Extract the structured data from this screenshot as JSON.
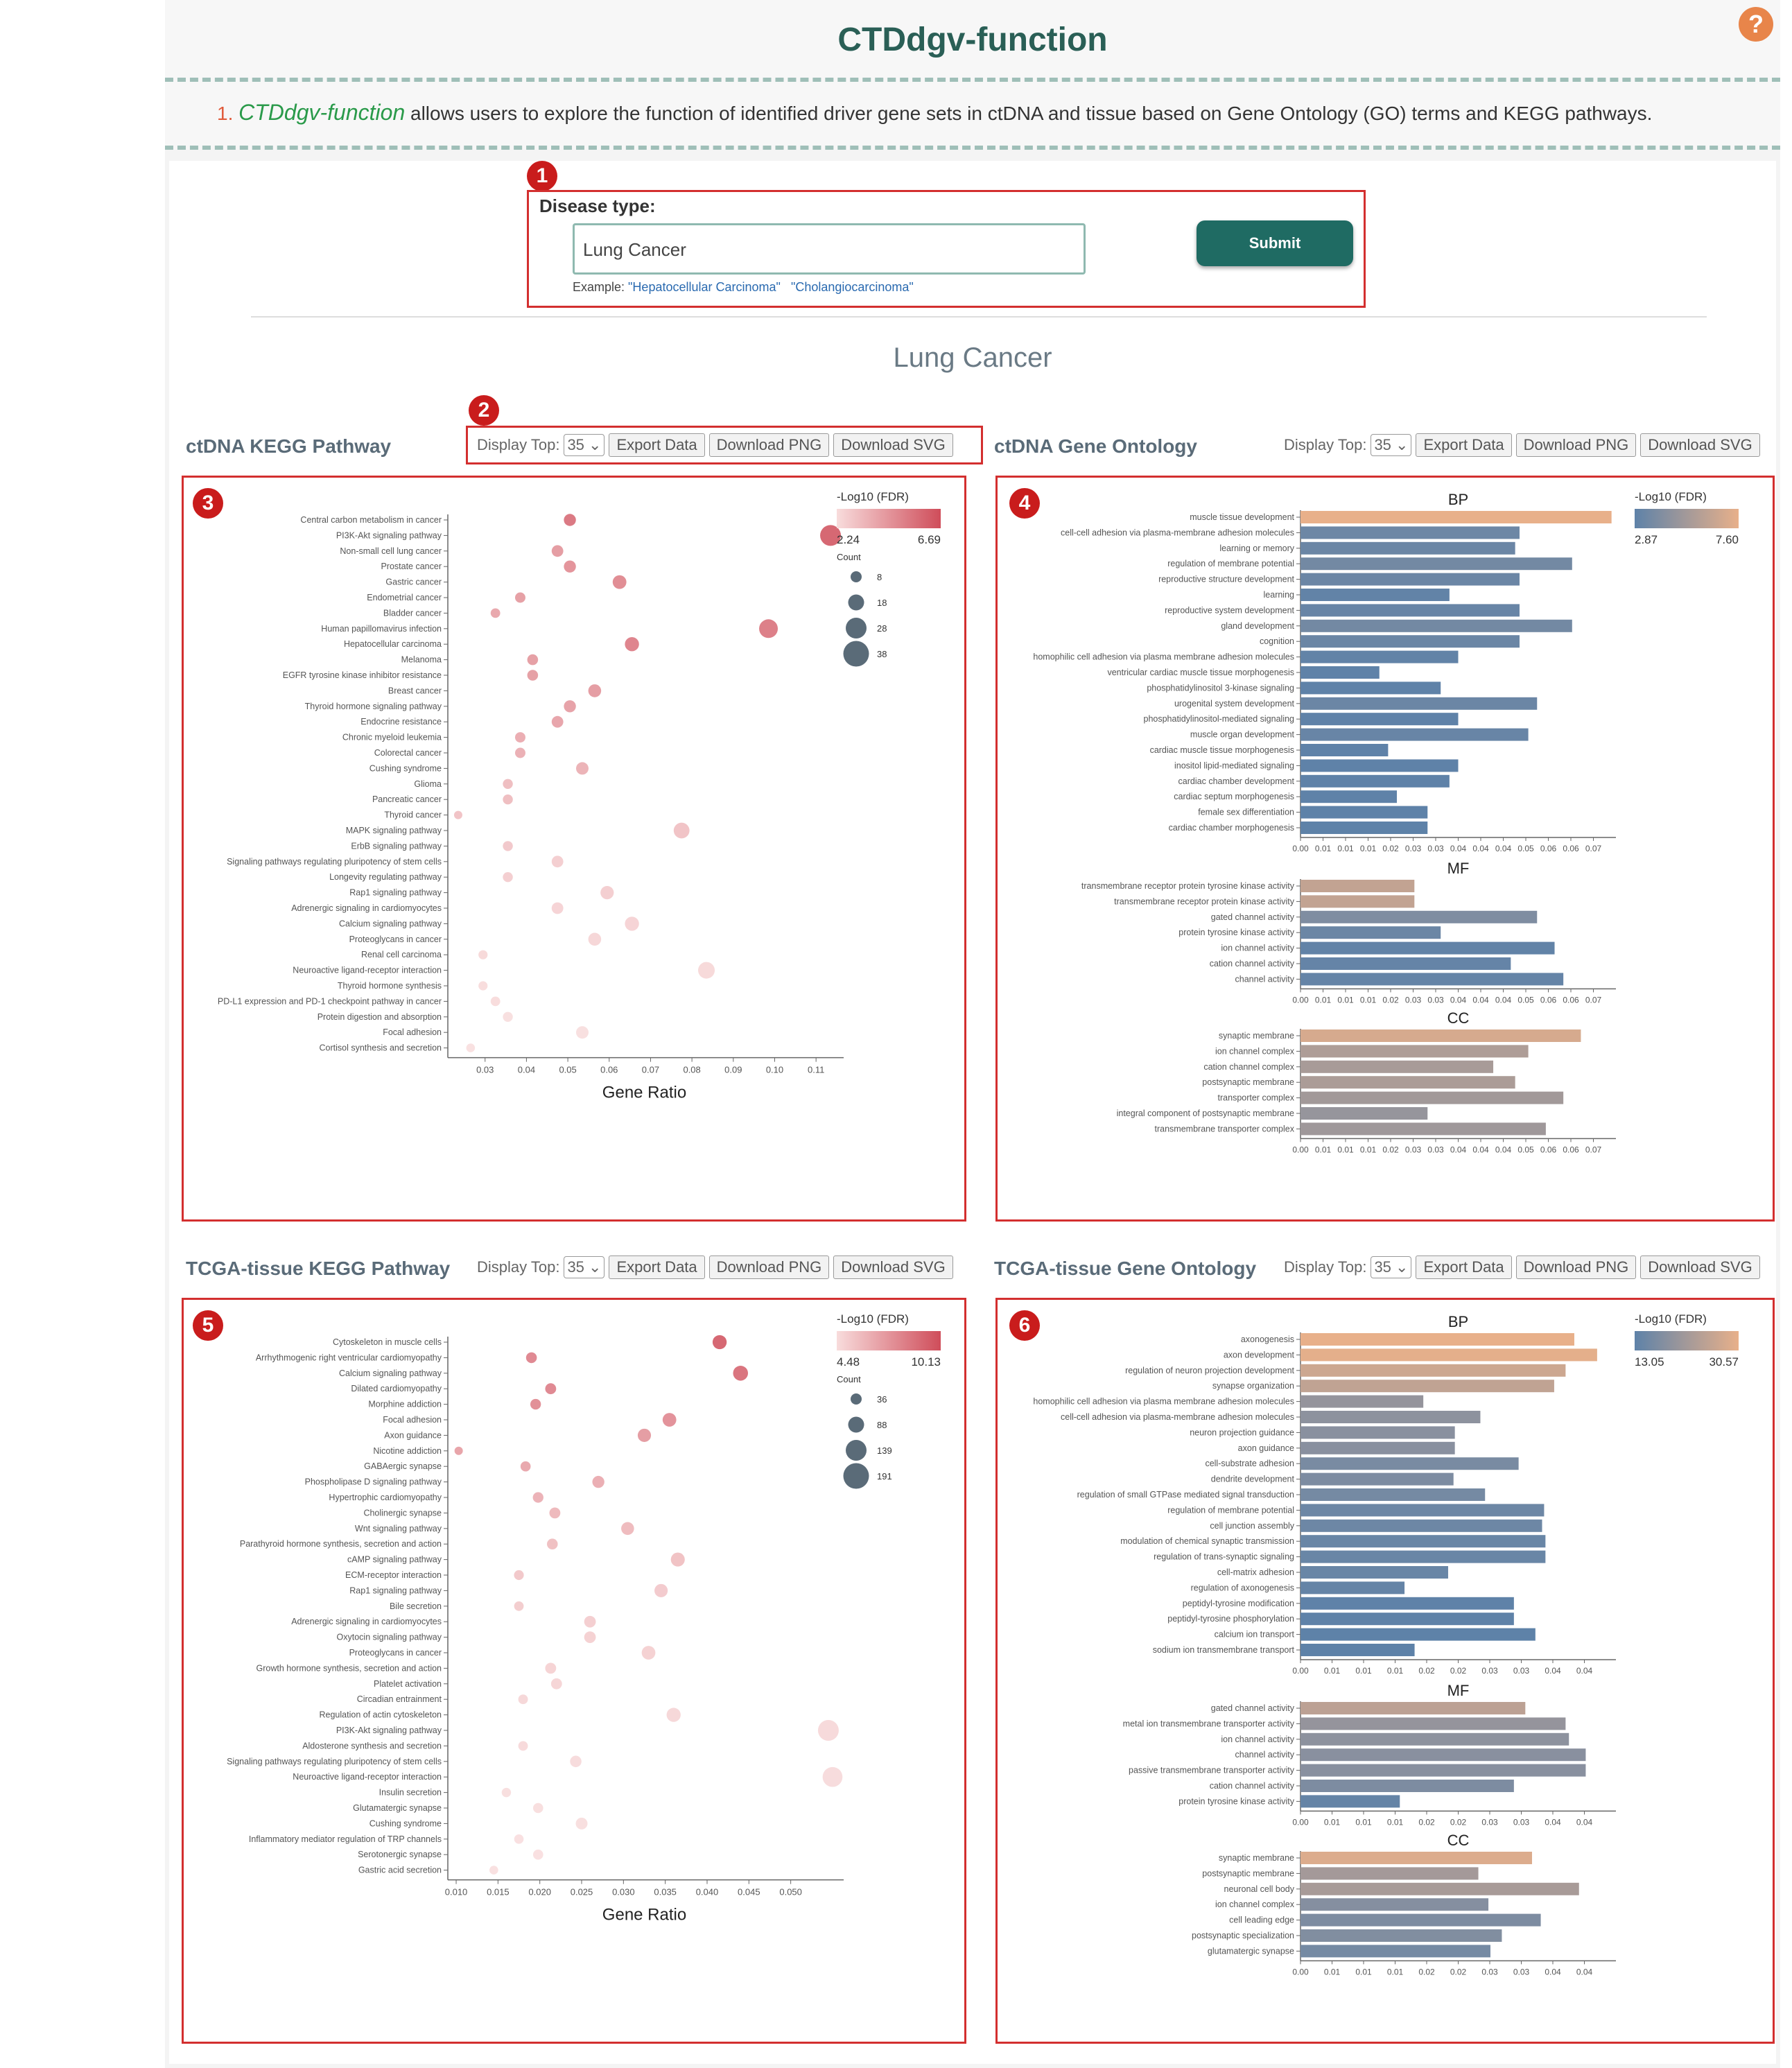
{
  "header": {
    "title": "CTDdgv-function",
    "help_icon": "?"
  },
  "description": {
    "number": "1.",
    "app_name": "CTDdgv-function",
    "text": " allows users to explore the function of identified driver gene sets in ctDNA and tissue based on Gene Ontology (GO) terms and KEGG pathways."
  },
  "badges": [
    "1",
    "2",
    "3",
    "4",
    "5",
    "6"
  ],
  "form": {
    "label": "Disease type:",
    "value": "Lung Cancer",
    "example_prefix": "Example: ",
    "examples": [
      "\"Hepatocellular Carcinoma\"",
      "\"Cholangiocarcinoma\""
    ],
    "submit": "Submit"
  },
  "disease_heading": "Lung Cancer",
  "controls": {
    "display_top": "Display Top:",
    "top_value": "35",
    "export": "Export Data",
    "png": "Download PNG",
    "svg": "Download SVG"
  },
  "panels": {
    "ctdna_kegg": "ctDNA KEGG Pathway",
    "ctdna_go": "ctDNA Gene Ontology",
    "tissue_kegg": "TCGA-tissue KEGG Pathway",
    "tissue_go": "TCGA-tissue Gene Ontology"
  },
  "chart_data": [
    {
      "type": "scatter",
      "panel": "ctDNA KEGG Pathway",
      "xlabel": "Gene Ratio",
      "xlim": [
        0.022,
        0.115
      ],
      "xticks": [
        0.03,
        0.04,
        0.05,
        0.06,
        0.07,
        0.08,
        0.09,
        0.1,
        0.11
      ],
      "xtick_labels": [
        "0.03",
        "0.04",
        "0.05",
        "0.06",
        "0.07",
        "0.08",
        "0.09",
        "0.10",
        "0.11"
      ],
      "legend": {
        "title": "-Log10 (FDR)",
        "min": "2.24",
        "max": "6.69",
        "count_title": "Count",
        "counts": [
          "8",
          "18",
          "28",
          "38"
        ],
        "color_min": "#f8dcdc",
        "color_max": "#cf4d5a"
      },
      "categories": [
        "Central carbon metabolism in cancer",
        "PI3K-Akt signaling pathway",
        "Non-small cell lung cancer",
        "Prostate cancer",
        "Gastric cancer",
        "Endometrial cancer",
        "Bladder cancer",
        "Human papillomavirus infection",
        "Hepatocellular carcinoma",
        "Melanoma",
        "EGFR tyrosine kinase inhibitor resistance",
        "Breast cancer",
        "Thyroid hormone signaling pathway",
        "Endocrine resistance",
        "Chronic myeloid leukemia",
        "Colorectal cancer",
        "Cushing syndrome",
        "Glioma",
        "Pancreatic cancer",
        "Thyroid cancer",
        "MAPK signaling pathway",
        "ErbB signaling pathway",
        "Signaling pathways regulating pluripotency of stem cells",
        "Longevity regulating pathway",
        "Rap1 signaling pathway",
        "Adrenergic signaling in cardiomyocytes",
        "Calcium signaling pathway",
        "Proteoglycans in cancer",
        "Renal cell carcinoma",
        "Neuroactive ligand-receptor interaction",
        "Thyroid hormone synthesis",
        "PD-L1 expression and PD-1 checkpoint pathway in cancer",
        "Protein digestion and absorption",
        "Focal adhesion",
        "Cortisol synthesis and secretion"
      ],
      "x": [
        0.0505,
        0.1135,
        0.0475,
        0.0505,
        0.0625,
        0.0385,
        0.0325,
        0.0985,
        0.0655,
        0.0415,
        0.0415,
        0.0565,
        0.0505,
        0.0475,
        0.0385,
        0.0385,
        0.0535,
        0.0355,
        0.0355,
        0.0235,
        0.0775,
        0.0355,
        0.0475,
        0.0355,
        0.0595,
        0.0475,
        0.0655,
        0.0565,
        0.0295,
        0.0835,
        0.0295,
        0.0325,
        0.0355,
        0.0535,
        0.0265
      ],
      "fdr": [
        6.0,
        6.69,
        4.7,
        5.0,
        5.3,
        4.6,
        4.3,
        5.8,
        5.6,
        4.6,
        4.6,
        4.7,
        4.5,
        4.4,
        4.1,
        4.0,
        3.9,
        3.5,
        3.5,
        3.3,
        3.3,
        3.1,
        2.9,
        2.9,
        2.9,
        2.7,
        2.7,
        2.6,
        2.5,
        2.5,
        2.4,
        2.4,
        2.3,
        2.3,
        2.24
      ],
      "count": [
        17,
        38,
        16,
        17,
        21,
        13,
        11,
        33,
        22,
        14,
        14,
        19,
        17,
        16,
        13,
        13,
        18,
        12,
        12,
        8,
        26,
        12,
        16,
        12,
        20,
        16,
        22,
        19,
        10,
        28,
        10,
        11,
        12,
        18,
        9
      ]
    },
    {
      "type": "bar",
      "panel": "ctDNA Gene Ontology",
      "legend": {
        "title": "-Log10 (FDR)",
        "min": "2.87",
        "max": "7.60",
        "color_min": "#5e82a8",
        "color_max": "#e8b08a"
      },
      "xticks": [
        "0.00",
        "0.01",
        "0.01",
        "0.01",
        "0.02",
        "0.03",
        "0.03",
        "0.04",
        "0.04",
        "0.04",
        "0.05",
        "0.06",
        "0.06",
        "0.07"
      ],
      "xmax": 0.072,
      "groups": [
        {
          "name": "BP",
          "categories": [
            "muscle tissue development",
            "cell-cell adhesion via plasma-membrane adhesion molecules",
            "learning or memory",
            "regulation of membrane potential",
            "reproductive structure development",
            "learning",
            "reproductive system development",
            "gland development",
            "cognition",
            "homophilic cell adhesion via plasma membrane adhesion molecules",
            "ventricular cardiac muscle tissue morphogenesis",
            "phosphatidylinositol 3-kinase signaling",
            "urogenital system development",
            "phosphatidylinositol-mediated signaling",
            "muscle organ development",
            "cardiac muscle tissue morphogenesis",
            "inositol lipid-mediated signaling",
            "cardiac chamber development",
            "cardiac septum morphogenesis",
            "female sex differentiation",
            "cardiac chamber morphogenesis"
          ],
          "values": [
            0.071,
            0.05,
            0.049,
            0.062,
            0.05,
            0.034,
            0.05,
            0.062,
            0.05,
            0.036,
            0.018,
            0.032,
            0.054,
            0.036,
            0.052,
            0.02,
            0.036,
            0.034,
            0.022,
            0.029,
            0.029
          ],
          "fdr": [
            7.6,
            3.4,
            3.3,
            3.6,
            3.3,
            3.0,
            3.2,
            3.6,
            3.3,
            3.0,
            2.9,
            2.9,
            3.3,
            2.9,
            3.2,
            2.9,
            2.9,
            2.9,
            2.9,
            2.87,
            2.87
          ]
        },
        {
          "name": "MF",
          "categories": [
            "transmembrane receptor protein tyrosine kinase activity",
            "transmembrane receptor protein kinase activity",
            "gated channel activity",
            "protein tyrosine kinase activity",
            "ion channel activity",
            "cation channel activity",
            "channel activity"
          ],
          "values": [
            0.026,
            0.026,
            0.054,
            0.032,
            0.058,
            0.048,
            0.06
          ],
          "fdr": [
            6.3,
            6.3,
            4.0,
            3.3,
            3.0,
            3.1,
            3.1
          ]
        },
        {
          "name": "CC",
          "categories": [
            "synaptic membrane",
            "ion channel complex",
            "cation channel complex",
            "postsynaptic membrane",
            "transporter complex",
            "integral component of postsynaptic membrane",
            "transmembrane transporter complex"
          ],
          "values": [
            0.064,
            0.052,
            0.044,
            0.049,
            0.06,
            0.029,
            0.056
          ],
          "fdr": [
            7.0,
            5.6,
            5.4,
            5.5,
            5.2,
            4.8,
            5.1
          ]
        }
      ]
    },
    {
      "type": "scatter",
      "panel": "TCGA-tissue KEGG Pathway",
      "xlabel": "Gene Ratio",
      "xlim": [
        0.0095,
        0.0555
      ],
      "xticks": [
        0.01,
        0.015,
        0.02,
        0.025,
        0.03,
        0.035,
        0.04,
        0.045,
        0.05
      ],
      "xtick_labels": [
        "0.010",
        "0.015",
        "0.020",
        "0.025",
        "0.030",
        "0.035",
        "0.040",
        "0.045",
        "0.050"
      ],
      "legend": {
        "title": "-Log10 (FDR)",
        "min": "4.48",
        "max": "10.13",
        "count_title": "Count",
        "counts": [
          "36",
          "88",
          "139",
          "191"
        ],
        "color_min": "#f8dcdc",
        "color_max": "#cf4d5a"
      },
      "categories": [
        "Cytoskeleton in muscle cells",
        "Arrhythmogenic right ventricular cardiomyopathy",
        "Calcium signaling pathway",
        "Dilated cardiomyopathy",
        "Morphine addiction",
        "Focal adhesion",
        "Axon guidance",
        "Nicotine addiction",
        "GABAergic synapse",
        "Phospholipase D signaling pathway",
        "Hypertrophic cardiomyopathy",
        "Cholinergic synapse",
        "Wnt signaling pathway",
        "Parathyroid hormone synthesis, secretion and action",
        "cAMP signaling pathway",
        "ECM-receptor interaction",
        "Rap1 signaling pathway",
        "Bile secretion",
        "Adrenergic signaling in cardiomyocytes",
        "Oxytocin signaling pathway",
        "Proteoglycans in cancer",
        "Growth hormone synthesis, secretion and action",
        "Platelet activation",
        "Circadian entrainment",
        "Regulation of actin cytoskeleton",
        "PI3K-Akt signaling pathway",
        "Aldosterone synthesis and secretion",
        "Signaling pathways regulating pluripotency of stem cells",
        "Neuroactive ligand-receptor interaction",
        "Insulin secretion",
        "Glutamatergic synapse",
        "Cushing syndrome",
        "Inflammatory mediator regulation of TRP channels",
        "Serotonergic synapse",
        "Gastric acid secretion"
      ],
      "x": [
        0.0415,
        0.019,
        0.044,
        0.0213,
        0.0195,
        0.0355,
        0.0325,
        0.0103,
        0.0183,
        0.027,
        0.0198,
        0.0218,
        0.0305,
        0.0215,
        0.0365,
        0.0175,
        0.0345,
        0.0175,
        0.026,
        0.026,
        0.033,
        0.0213,
        0.022,
        0.018,
        0.036,
        0.0545,
        0.018,
        0.0243,
        0.055,
        0.016,
        0.0198,
        0.025,
        0.0175,
        0.0198,
        0.0145
      ],
      "fdr": [
        10.13,
        8.5,
        9.5,
        8.5,
        8.2,
        8.1,
        7.6,
        7.3,
        7.1,
        6.8,
        6.6,
        6.3,
        6.2,
        6.0,
        5.9,
        5.6,
        5.5,
        5.4,
        5.3,
        5.2,
        5.2,
        5.1,
        5.0,
        4.9,
        4.9,
        4.8,
        4.8,
        4.7,
        4.7,
        4.6,
        4.6,
        4.6,
        4.5,
        4.5,
        4.48
      ],
      "count": [
        110,
        70,
        120,
        72,
        68,
        105,
        100,
        40,
        62,
        85,
        68,
        72,
        95,
        70,
        108,
        58,
        100,
        55,
        80,
        80,
        105,
        72,
        72,
        56,
        110,
        191,
        56,
        78,
        180,
        52,
        62,
        82,
        54,
        62,
        45
      ]
    },
    {
      "type": "bar",
      "panel": "TCGA-tissue Gene Ontology",
      "legend": {
        "title": "-Log10 (FDR)",
        "min": "13.05",
        "max": "30.57",
        "color_min": "#5e82a8",
        "color_max": "#e8b08a"
      },
      "xticks": [
        "0.00",
        "0.01",
        "0.01",
        "0.01",
        "0.02",
        "0.02",
        "0.03",
        "0.03",
        "0.04",
        "0.04"
      ],
      "xmax": 0.047,
      "groups": [
        {
          "name": "BP",
          "categories": [
            "axonogenesis",
            "axon development",
            "regulation of neuron projection development",
            "synapse organization",
            "homophilic cell adhesion via plasma membrane adhesion molecules",
            "cell-cell adhesion via plasma-membrane adhesion molecules",
            "neuron projection guidance",
            "axon guidance",
            "cell-substrate adhesion",
            "dendrite development",
            "regulation of small GTPase mediated signal transduction",
            "regulation of membrane potential",
            "cell junction assembly",
            "modulation of chemical synaptic transmission",
            "regulation of trans-synaptic signaling",
            "cell-matrix adhesion",
            "regulation of axonogenesis",
            "peptidyl-tyrosine modification",
            "peptidyl-tyrosine phosphorylation",
            "calcium ion transport",
            "sodium ion transmembrane transport"
          ],
          "values": [
            0.0408,
            0.0442,
            0.0395,
            0.0378,
            0.0183,
            0.0268,
            0.023,
            0.023,
            0.0325,
            0.0228,
            0.0275,
            0.0363,
            0.036,
            0.0365,
            0.0365,
            0.022,
            0.0155,
            0.0318,
            0.0318,
            0.035,
            0.017
          ],
          "fdr": [
            30.57,
            30.0,
            27.0,
            25.5,
            20.0,
            19.0,
            18.5,
            18.5,
            16.5,
            17.0,
            16.0,
            15.0,
            15.0,
            14.5,
            14.5,
            14.5,
            14.0,
            13.2,
            13.2,
            13.1,
            13.05
          ]
        },
        {
          "name": "MF",
          "categories": [
            "gated channel activity",
            "metal ion transmembrane transporter activity",
            "ion channel activity",
            "channel activity",
            "passive transmembrane transporter activity",
            "cation channel activity",
            "protein tyrosine kinase activity"
          ],
          "values": [
            0.0335,
            0.0395,
            0.04,
            0.0425,
            0.0425,
            0.0318,
            0.0148
          ],
          "fdr": [
            25.0,
            20.0,
            19.0,
            18.5,
            18.5,
            17.0,
            14.0
          ]
        },
        {
          "name": "CC",
          "categories": [
            "synaptic membrane",
            "postsynaptic membrane",
            "neuronal cell body",
            "ion channel complex",
            "cell leading edge",
            "postsynaptic specialization",
            "glutamatergic synapse"
          ],
          "values": [
            0.0345,
            0.0265,
            0.0415,
            0.028,
            0.0358,
            0.03,
            0.0283
          ],
          "fdr": [
            29.0,
            22.0,
            22.5,
            18.0,
            17.0,
            17.5,
            16.0
          ]
        }
      ]
    }
  ]
}
